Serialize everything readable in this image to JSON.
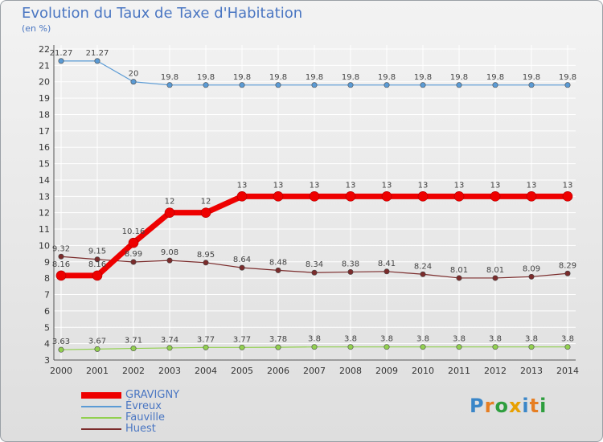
{
  "colors": {
    "title": "#4a76c2",
    "axis_text": "#333333",
    "grid": "#ffffff"
  },
  "chart_data": {
    "type": "line",
    "title": "Evolution du Taux de Taxe d'Habitation",
    "subtitle": "(en %)",
    "x": [
      "2000",
      "2001",
      "2002",
      "2003",
      "2004",
      "2005",
      "2006",
      "2007",
      "2008",
      "2009",
      "2010",
      "2011",
      "2012",
      "2013",
      "2014"
    ],
    "yticks": [
      3,
      4,
      5,
      6,
      7,
      8,
      9,
      10,
      11,
      12,
      13,
      14,
      15,
      16,
      17,
      18,
      19,
      20,
      21,
      22
    ],
    "ylim": [
      3,
      22
    ],
    "grid": true,
    "legend_position": "bottom-left",
    "series": [
      {
        "name": "GRAVIGNY",
        "color": "#ee0000",
        "width": 7,
        "values": [
          8.16,
          8.16,
          10.16,
          12,
          12,
          13,
          13,
          13,
          13,
          13,
          13,
          13,
          13,
          13,
          13
        ],
        "labels": [
          "8.16",
          "8.16",
          "10.16",
          "12",
          "12",
          "13",
          "13",
          "13",
          "13",
          "13",
          "13",
          "13",
          "13",
          "13",
          "13"
        ]
      },
      {
        "name": "Évreux",
        "color": "#5b9bd5",
        "width": 1.2,
        "values": [
          21.27,
          21.27,
          20,
          19.8,
          19.8,
          19.8,
          19.8,
          19.8,
          19.8,
          19.8,
          19.8,
          19.8,
          19.8,
          19.8,
          19.8
        ],
        "labels": [
          "21.27",
          "21.27",
          "20",
          "19.8",
          "19.8",
          "19.8",
          "19.8",
          "19.8",
          "19.8",
          "19.8",
          "19.8",
          "19.8",
          "19.8",
          "19.8",
          "19.8"
        ]
      },
      {
        "name": "Fauville",
        "color": "#92d050",
        "width": 1.2,
        "values": [
          3.63,
          3.67,
          3.71,
          3.74,
          3.77,
          3.77,
          3.78,
          3.8,
          3.8,
          3.8,
          3.8,
          3.8,
          3.8,
          3.8,
          3.8
        ],
        "labels": [
          "3.63",
          "3.67",
          "3.71",
          "3.74",
          "3.77",
          "3.77",
          "3.78",
          "3.8",
          "3.8",
          "3.8",
          "3.8",
          "3.8",
          "3.8",
          "3.8",
          "3.8"
        ]
      },
      {
        "name": "Huest",
        "color": "#7b2c2c",
        "width": 1.2,
        "values": [
          9.32,
          9.15,
          8.99,
          9.08,
          8.95,
          8.64,
          8.48,
          8.34,
          8.38,
          8.41,
          8.24,
          8.01,
          8.01,
          8.09,
          8.29
        ],
        "labels": [
          "9.32",
          "9.15",
          "8.99",
          "9.08",
          "8.95",
          "8.64",
          "8.48",
          "8.34",
          "8.38",
          "8.41",
          "8.24",
          "8.01",
          "8.01",
          "8.09",
          "8.29"
        ]
      }
    ]
  },
  "logo": {
    "letters": [
      "P",
      "r",
      "o",
      "x",
      "i",
      "t",
      "i"
    ],
    "letter_colors": [
      "#3a86c8",
      "#e67e22",
      "#2e9e3e",
      "#e8a000",
      "#3a86c8",
      "#e67e22",
      "#2e9e3e"
    ]
  }
}
